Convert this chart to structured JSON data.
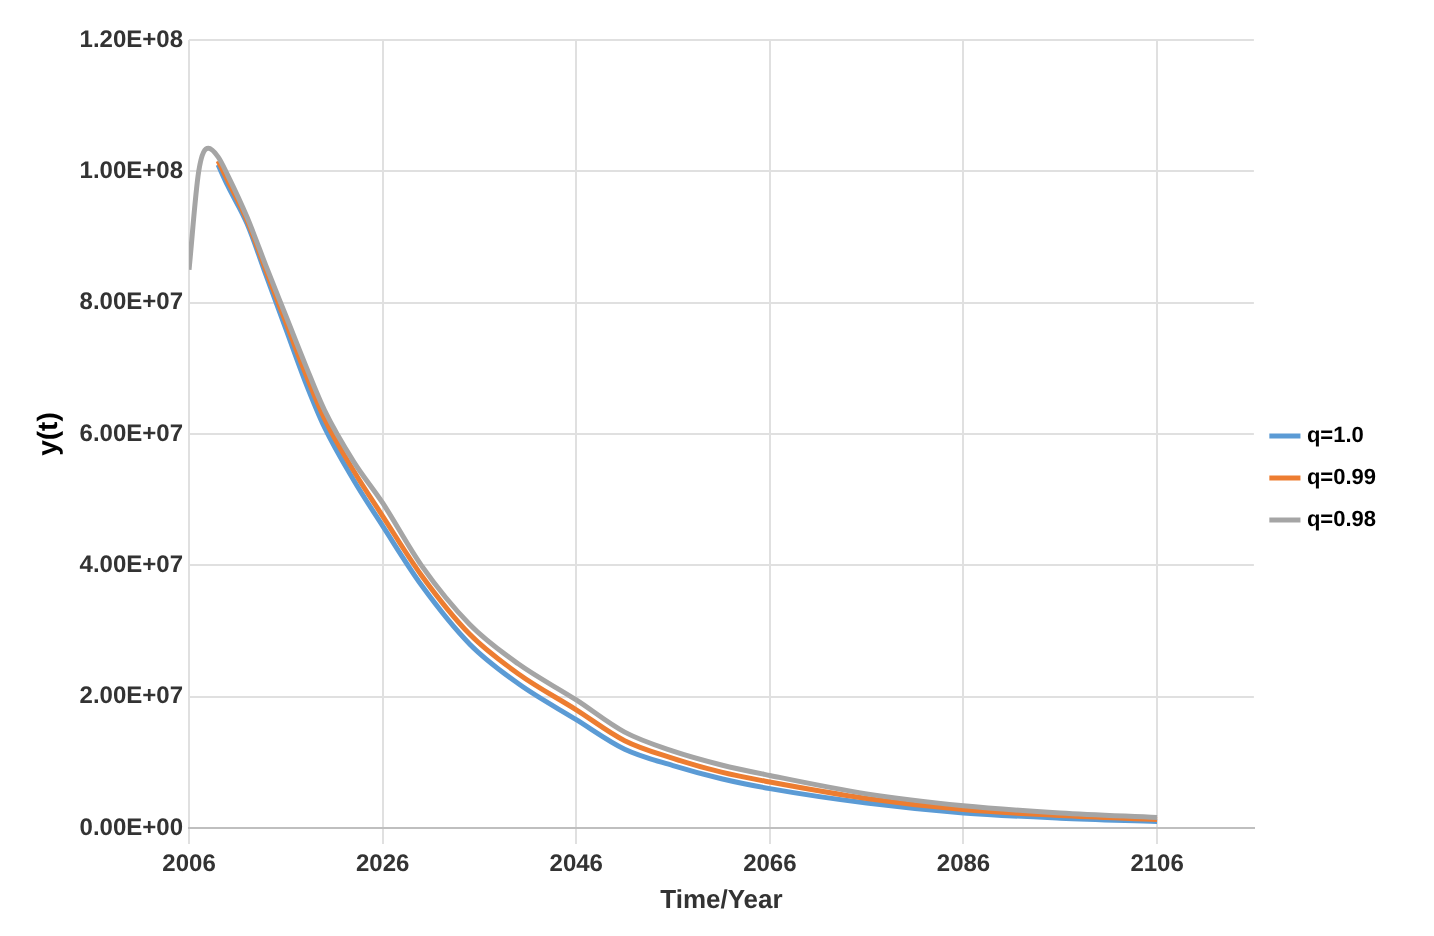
{
  "chart_data": {
    "type": "line",
    "xlabel": "Time/Year",
    "ylabel": "y(t)",
    "x": [
      2006,
      2007,
      2008,
      2009,
      2010,
      2012,
      2014,
      2016,
      2018,
      2020,
      2023,
      2026,
      2030,
      2035,
      2040,
      2046,
      2051,
      2056,
      2061,
      2066,
      2076,
      2086,
      2096,
      2106
    ],
    "series": [
      {
        "name": "q=1.0",
        "color": "#5b9bd5",
        "values": [
          null,
          null,
          null,
          101000000,
          97800000,
          92000000,
          84000000,
          76000000,
          68000000,
          61000000,
          53000000,
          46000000,
          37000000,
          28000000,
          22000000,
          16500000,
          12000000,
          9500000,
          7500000,
          6000000,
          3800000,
          2300000,
          1500000,
          1000000
        ]
      },
      {
        "name": "q=0.99",
        "color": "#ed7d31",
        "values": [
          null,
          null,
          null,
          101600000,
          98600000,
          92500000,
          84700000,
          77000000,
          69300000,
          62300000,
          54400000,
          47500000,
          38500000,
          29500000,
          23500000,
          18000000,
          13300000,
          10600000,
          8500000,
          7000000,
          4500000,
          2800000,
          1900000,
          1300000
        ]
      },
      {
        "name": "q=0.98",
        "color": "#a5a5a5",
        "values": [
          85000000,
          100000000,
          103500000,
          102200000,
          99400000,
          93000000,
          85400000,
          78000000,
          70600000,
          63600000,
          55800000,
          49500000,
          40000000,
          31000000,
          25000000,
          19500000,
          14600000,
          11700000,
          9600000,
          8000000,
          5200000,
          3400000,
          2300000,
          1600000
        ]
      }
    ],
    "xlim": [
      2006,
      2116
    ],
    "xticks": [
      2006,
      2026,
      2046,
      2066,
      2086,
      2106
    ],
    "ylim": [
      0,
      120000000
    ],
    "yticks": [
      {
        "value": 0,
        "label": "0.00E+00"
      },
      {
        "value": 20000000,
        "label": "2.00E+07"
      },
      {
        "value": 40000000,
        "label": "4.00E+07"
      },
      {
        "value": 60000000,
        "label": "6.00E+07"
      },
      {
        "value": 80000000,
        "label": "8.00E+07"
      },
      {
        "value": 100000000,
        "label": "1.00E+08"
      },
      {
        "value": 120000000,
        "label": "1.20E+08"
      }
    ],
    "grid": true,
    "legend": "right",
    "marker": "none",
    "line_style": "solid"
  }
}
